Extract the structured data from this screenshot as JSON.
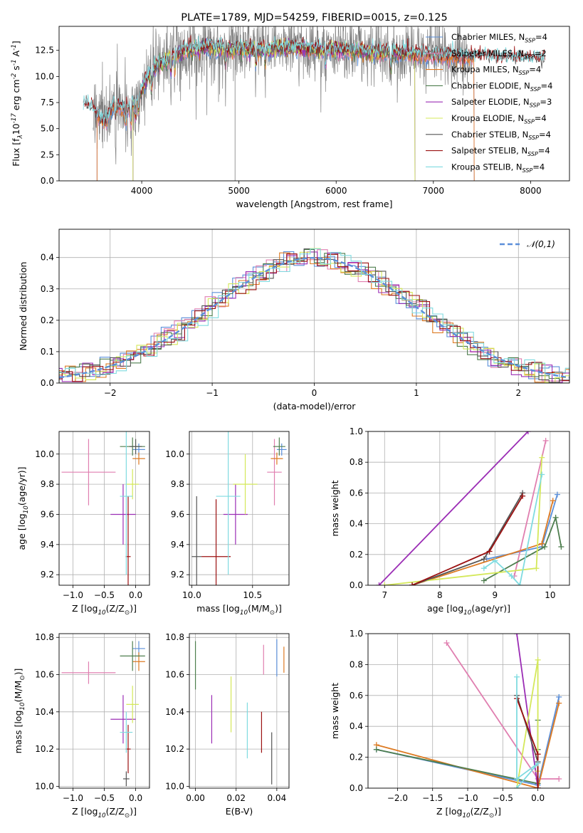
{
  "colors": {
    "chabrier_miles": "#5b8fd9",
    "salpeter_miles": "#e07fb0",
    "kroupa_miles": "#dd7a22",
    "chabrier_elodie": "#4e7e4e",
    "salpeter_elodie": "#9b2db5",
    "kroupa_elodie": "#d4e85a",
    "chabrier_stelib": "#555555",
    "salpeter_stelib": "#9b1111",
    "kroupa_stelib": "#7fdbe0",
    "data": "#808080",
    "gauss": "#5b8fd9",
    "grid": "#b0b0b0"
  },
  "chart_data": [
    {
      "id": "spectrum",
      "type": "line",
      "title": "PLATE=1789, MJD=54259, FIBERID=0015, z=0.125",
      "xlabel": "wavelength [Angstrom, rest frame]",
      "ylabel": "Flux [f$_\\lambda$10$^{-17}$ erg cm$^{-2}$ s$^{-1}$ A$^{-1}$]",
      "xlim": [
        3150,
        8400
      ],
      "ylim": [
        0,
        14.8
      ],
      "xticks": [
        4000,
        5000,
        6000,
        7000,
        8000
      ],
      "yticks": [
        "0.0",
        "2.5",
        "5.0",
        "7.5",
        "10.0",
        "12.5"
      ],
      "grid": false,
      "legend_position": "upper-right",
      "legend": [
        {
          "label": "Chabrier MILES, N$_{SSP}$=4",
          "color": "chabrier_miles"
        },
        {
          "label": "Salpeter MILES, N$_{SSP}$=2",
          "color": "salpeter_miles"
        },
        {
          "label": "Kroupa MILES, N$_{SSP}$=4",
          "color": "kroupa_miles"
        },
        {
          "label": "Chabrier ELODIE, N$_{SSP}$=4",
          "color": "chabrier_elodie"
        },
        {
          "label": "Salpeter ELODIE, N$_{SSP}$=3",
          "color": "salpeter_elodie"
        },
        {
          "label": "Kroupa ELODIE, N$_{SSP}$=4",
          "color": "kroupa_elodie"
        },
        {
          "label": "Chabrier STELIB, N$_{SSP}$=4",
          "color": "chabrier_stelib"
        },
        {
          "label": "Salpeter STELIB, N$_{SSP}$=4",
          "color": "salpeter_stelib"
        },
        {
          "label": "Kroupa STELIB, N$_{SSP}$=4",
          "color": "kroupa_stelib"
        }
      ],
      "continuum": [
        [
          3400,
          7.3
        ],
        [
          3480,
          7.0
        ],
        [
          3560,
          6.0
        ],
        [
          3640,
          5.7
        ],
        [
          3720,
          7.6
        ],
        [
          3800,
          6.8
        ],
        [
          3880,
          7.0
        ],
        [
          3950,
          7.6
        ],
        [
          4050,
          9.7
        ],
        [
          4150,
          11.0
        ],
        [
          4300,
          11.8
        ],
        [
          4500,
          12.6
        ],
        [
          4700,
          12.8
        ],
        [
          4900,
          12.6
        ],
        [
          5100,
          12.6
        ],
        [
          5300,
          12.5
        ],
        [
          5500,
          12.8
        ],
        [
          5700,
          12.6
        ],
        [
          5900,
          12.5
        ],
        [
          6100,
          12.5
        ],
        [
          6300,
          12.4
        ],
        [
          6500,
          12.3
        ],
        [
          6700,
          12.2
        ],
        [
          6900,
          12.1
        ],
        [
          7100,
          12.0
        ],
        [
          7300,
          11.9
        ],
        [
          7500,
          11.9
        ],
        [
          7700,
          11.8
        ],
        [
          7900,
          11.7
        ],
        [
          8150,
          11.6
        ]
      ],
      "model_ranges": {
        "chabrier_miles": [
          3540,
          7420
        ],
        "salpeter_miles": [
          3540,
          7420
        ],
        "kroupa_miles": [
          3540,
          7420
        ],
        "chabrier_elodie": [
          3910,
          6810
        ],
        "salpeter_elodie": [
          3910,
          6810
        ],
        "kroupa_elodie": [
          3910,
          6810
        ],
        "chabrier_stelib": [
          3400,
          8150
        ],
        "salpeter_stelib": [
          3400,
          8150
        ],
        "kroupa_stelib": [
          3400,
          8150
        ]
      },
      "data_range": [
        3500,
        7400
      ]
    },
    {
      "id": "residuals",
      "type": "histogram",
      "xlabel": "(data-model)/error",
      "ylabel": "Normed distribution",
      "xlim": [
        -2.5,
        2.5
      ],
      "ylim": [
        0,
        0.49
      ],
      "xticks": [
        "-2",
        "-1",
        "0",
        "1",
        "2"
      ],
      "yticks": [
        "0.0",
        "0.1",
        "0.2",
        "0.3",
        "0.4"
      ],
      "grid": true,
      "legend_position": "upper-right",
      "legend": [
        {
          "label": "$\\mathcal{N}(0,1)$",
          "color": "gauss",
          "style": "dashed"
        }
      ],
      "bin_width": 0.1
    },
    {
      "id": "age_vs_Z",
      "type": "errorbar",
      "xlabel": "Z [log$_{10}$(Z/Z$_\\odot$)]",
      "ylabel": "age  [log$_{10}$(age/yr)]",
      "xlim": [
        -1.22,
        0.22
      ],
      "ylim": [
        9.13,
        10.15
      ],
      "xticks": [
        "-1.0",
        "-0.5",
        "0.0"
      ],
      "yticks": [
        "9.2",
        "9.4",
        "9.6",
        "9.8",
        "10.0"
      ],
      "grid": true,
      "points": [
        {
          "c": "chabrier_miles",
          "x": 0.05,
          "y": 10.03,
          "xerr": 0.1,
          "yerr": 0.04
        },
        {
          "c": "salpeter_miles",
          "x": -0.75,
          "y": 9.88,
          "xerr": 0.43,
          "yerr": 0.22
        },
        {
          "c": "kroupa_miles",
          "x": 0.05,
          "y": 9.97,
          "xerr": 0.1,
          "yerr": 0.04
        },
        {
          "c": "chabrier_elodie",
          "x": -0.05,
          "y": 10.05,
          "xerr": 0.2,
          "yerr": 0.06
        },
        {
          "c": "salpeter_elodie",
          "x": -0.2,
          "y": 9.6,
          "xerr": 0.2,
          "yerr": 0.2
        },
        {
          "c": "kroupa_elodie",
          "x": -0.05,
          "y": 9.8,
          "xerr": 0.1,
          "yerr": 0.1
        },
        {
          "c": "chabrier_stelib",
          "x": 0.0,
          "y": 10.05,
          "xerr": 0.1,
          "yerr": 0.05
        },
        {
          "c": "salpeter_stelib",
          "x": -0.12,
          "y": 9.32,
          "xerr": 0.04,
          "yerr": 0.4
        },
        {
          "c": "kroupa_stelib",
          "x": -0.15,
          "y": 9.72,
          "xerr": 0.1,
          "yerr": 0.52
        }
      ]
    },
    {
      "id": "age_vs_mass",
      "type": "errorbar",
      "xlabel": "mass [log$_{10}$(M/M$_\\odot$)]",
      "ylabel": "",
      "xlim": [
        9.98,
        10.8
      ],
      "ylim": [
        9.13,
        10.15
      ],
      "xticks": [
        "10.0",
        "10.5"
      ],
      "yticks": [
        "9.2",
        "9.4",
        "9.6",
        "9.8",
        "10.0"
      ],
      "grid": true,
      "points": [
        {
          "c": "chabrier_miles",
          "x": 10.74,
          "y": 10.03,
          "xerr": 0.04,
          "yerr": 0.04
        },
        {
          "c": "salpeter_miles",
          "x": 10.68,
          "y": 9.88,
          "xerr": 0.06,
          "yerr": 0.22
        },
        {
          "c": "kroupa_miles",
          "x": 10.7,
          "y": 9.97,
          "xerr": 0.05,
          "yerr": 0.04
        },
        {
          "c": "chabrier_elodie",
          "x": 10.72,
          "y": 10.05,
          "xerr": 0.05,
          "yerr": 0.06
        },
        {
          "c": "salpeter_elodie",
          "x": 10.36,
          "y": 9.6,
          "xerr": 0.1,
          "yerr": 0.2
        },
        {
          "c": "kroupa_elodie",
          "x": 10.44,
          "y": 9.8,
          "xerr": 0.1,
          "yerr": 0.2
        },
        {
          "c": "chabrier_stelib",
          "x": 10.04,
          "y": 9.32,
          "xerr": 0.04,
          "yerr": 0.4
        },
        {
          "c": "salpeter_stelib",
          "x": 10.2,
          "y": 9.32,
          "xerr": 0.12,
          "yerr": 0.38
        },
        {
          "c": "kroupa_stelib",
          "x": 10.3,
          "y": 9.72,
          "xerr": 0.1,
          "yerr": 0.52
        }
      ]
    },
    {
      "id": "weight_vs_age",
      "type": "line",
      "xlabel": "age  [log$_{10}$(age/yr)]",
      "ylabel": "mass weight",
      "xlim": [
        6.7,
        10.35
      ],
      "ylim": [
        0,
        1.0
      ],
      "xticks": [
        "7",
        "8",
        "9",
        "10"
      ],
      "yticks": [
        "0.0",
        "0.2",
        "0.4",
        "0.6",
        "0.8",
        "1.0"
      ],
      "grid": true,
      "series": [
        {
          "c": "chabrier_miles",
          "pts": [
            [
              8.85,
              0.17
            ],
            [
              9.85,
              0.25
            ],
            [
              10.13,
              0.59
            ]
          ]
        },
        {
          "c": "salpeter_miles",
          "pts": [
            [
              9.35,
              0.06
            ],
            [
              9.92,
              0.94
            ]
          ]
        },
        {
          "c": "kroupa_miles",
          "pts": [
            [
              7.5,
              0.0
            ],
            [
              9.85,
              0.27
            ],
            [
              10.05,
              0.55
            ]
          ]
        },
        {
          "c": "chabrier_elodie",
          "pts": [
            [
              8.8,
              0.03
            ],
            [
              9.9,
              0.25
            ],
            [
              10.1,
              0.44
            ],
            [
              10.2,
              0.25
            ]
          ]
        },
        {
          "c": "salpeter_elodie",
          "pts": [
            [
              6.9,
              0.0
            ],
            [
              9.6,
              1.0
            ]
          ]
        },
        {
          "c": "kroupa_elodie",
          "pts": [
            [
              7.0,
              0.0
            ],
            [
              9.75,
              0.11
            ],
            [
              9.85,
              0.83
            ]
          ]
        },
        {
          "c": "chabrier_stelib",
          "pts": [
            [
              7.5,
              0.0
            ],
            [
              8.8,
              0.17
            ],
            [
              9.5,
              0.6
            ]
          ]
        },
        {
          "c": "salpeter_stelib",
          "pts": [
            [
              7.5,
              0.0
            ],
            [
              8.9,
              0.22
            ],
            [
              9.5,
              0.58
            ]
          ]
        },
        {
          "c": "kroupa_stelib",
          "pts": [
            [
              8.8,
              0.11
            ],
            [
              9.0,
              0.16
            ],
            [
              9.3,
              0.06
            ],
            [
              9.45,
              0.0
            ],
            [
              9.85,
              0.72
            ]
          ]
        }
      ]
    },
    {
      "id": "mass_vs_Z",
      "type": "errorbar",
      "xlabel": "Z [log$_{10}$(Z/Z$_\\odot$)]",
      "ylabel": "mass [log$_{10}$(M/M$_\\odot$)]",
      "xlim": [
        -1.22,
        0.22
      ],
      "ylim": [
        9.99,
        10.82
      ],
      "xticks": [
        "-1.0",
        "-0.5",
        "0.0"
      ],
      "yticks": [
        "10.0",
        "10.2",
        "10.4",
        "10.6",
        "10.8"
      ],
      "grid": true,
      "points": [
        {
          "c": "chabrier_miles",
          "x": 0.05,
          "y": 10.74,
          "xerr": 0.1,
          "yerr": 0.04
        },
        {
          "c": "salpeter_miles",
          "x": -0.75,
          "y": 10.61,
          "xerr": 0.43,
          "yerr": 0.06
        },
        {
          "c": "kroupa_miles",
          "x": 0.05,
          "y": 10.67,
          "xerr": 0.1,
          "yerr": 0.05
        },
        {
          "c": "chabrier_elodie",
          "x": -0.05,
          "y": 10.7,
          "xerr": 0.2,
          "yerr": 0.08
        },
        {
          "c": "salpeter_elodie",
          "x": -0.2,
          "y": 10.36,
          "xerr": 0.2,
          "yerr": 0.13
        },
        {
          "c": "kroupa_elodie",
          "x": -0.05,
          "y": 10.44,
          "xerr": 0.1,
          "yerr": 0.1
        },
        {
          "c": "chabrier_stelib",
          "x": -0.15,
          "y": 10.04,
          "xerr": 0.05,
          "yerr": 0.04
        },
        {
          "c": "salpeter_stelib",
          "x": -0.12,
          "y": 10.2,
          "xerr": 0.04,
          "yerr": 0.13
        },
        {
          "c": "kroupa_stelib",
          "x": -0.15,
          "y": 10.29,
          "xerr": 0.1,
          "yerr": 0.11
        }
      ]
    },
    {
      "id": "mass_vs_ebv",
      "type": "errorbar",
      "xlabel": "E(B-V)",
      "ylabel": "",
      "xlim": [
        -0.003,
        0.046
      ],
      "ylim": [
        9.99,
        10.82
      ],
      "xticks": [
        "0.00",
        "0.02",
        "0.04"
      ],
      "yticks": [
        "10.0",
        "10.2",
        "10.4",
        "10.6",
        "10.8"
      ],
      "grid": true,
      "points": [
        {
          "c": "chabrier_miles",
          "x": 0.04,
          "y": 10.69,
          "xerr": 0.0,
          "yerr": 0.1
        },
        {
          "c": "salpeter_miles",
          "x": 0.0335,
          "y": 10.68,
          "xerr": 0.0,
          "yerr": 0.08
        },
        {
          "c": "kroupa_miles",
          "x": 0.0435,
          "y": 10.68,
          "xerr": 0.0,
          "yerr": 0.07
        },
        {
          "c": "chabrier_elodie",
          "x": 0.0,
          "y": 10.65,
          "xerr": 0.0,
          "yerr": 0.13
        },
        {
          "c": "salpeter_elodie",
          "x": 0.008,
          "y": 10.36,
          "xerr": 0.0,
          "yerr": 0.13
        },
        {
          "c": "kroupa_elodie",
          "x": 0.0175,
          "y": 10.44,
          "xerr": 0.0,
          "yerr": 0.15
        },
        {
          "c": "chabrier_stelib",
          "x": 0.0375,
          "y": 10.15,
          "xerr": 0.0,
          "yerr": 0.14
        },
        {
          "c": "salpeter_stelib",
          "x": 0.0325,
          "y": 10.29,
          "xerr": 0.0,
          "yerr": 0.11
        },
        {
          "c": "kroupa_stelib",
          "x": 0.0255,
          "y": 10.3,
          "xerr": 0.0,
          "yerr": 0.15
        }
      ]
    },
    {
      "id": "weight_vs_Z",
      "type": "line",
      "xlabel": "Z [log$_{10}$(Z/Z$_\\odot$)]",
      "ylabel": "mass weight",
      "xlim": [
        -2.42,
        0.45
      ],
      "ylim": [
        0,
        1.0
      ],
      "xticks": [
        "-2.0",
        "-1.5",
        "-1.0",
        "-0.5",
        "0.0"
      ],
      "yticks": [
        "0.0",
        "0.2",
        "0.4",
        "0.6",
        "0.8",
        "1.0"
      ],
      "grid": true,
      "series": [
        {
          "c": "chabrier_miles",
          "pts": [
            [
              -2.3,
              0.25
            ],
            [
              0.0,
              0.02
            ],
            [
              0.3,
              0.59
            ]
          ]
        },
        {
          "c": "salpeter_miles",
          "pts": [
            [
              -1.3,
              0.94
            ],
            [
              0.0,
              0.06
            ],
            [
              0.3,
              0.06
            ]
          ]
        },
        {
          "c": "kroupa_miles",
          "pts": [
            [
              -2.3,
              0.28
            ],
            [
              0.0,
              0.0
            ],
            [
              0.3,
              0.55
            ]
          ]
        },
        {
          "c": "chabrier_elodie",
          "pts": [
            [
              -2.3,
              0.25
            ],
            [
              0.0,
              0.03
            ],
            [
              0.0,
              0.44
            ],
            [
              0.0,
              0.25
            ]
          ]
        },
        {
          "c": "salpeter_elodie",
          "pts": [
            [
              -0.3,
              1.0
            ],
            [
              0.0,
              0.0
            ]
          ]
        },
        {
          "c": "kroupa_elodie",
          "pts": [
            [
              -0.3,
              0.0
            ],
            [
              0.0,
              0.83
            ],
            [
              0.0,
              0.11
            ]
          ]
        },
        {
          "c": "chabrier_stelib",
          "pts": [
            [
              -0.3,
              0.6
            ],
            [
              0.0,
              0.17
            ],
            [
              0.0,
              0.0
            ]
          ]
        },
        {
          "c": "salpeter_stelib",
          "pts": [
            [
              -0.3,
              0.58
            ],
            [
              0.0,
              0.22
            ],
            [
              0.0,
              0.0
            ]
          ]
        },
        {
          "c": "kroupa_stelib",
          "pts": [
            [
              -0.3,
              0.72
            ],
            [
              -0.3,
              0.06
            ],
            [
              0.0,
              0.16
            ],
            [
              -0.3,
              0.0
            ]
          ]
        }
      ]
    }
  ]
}
